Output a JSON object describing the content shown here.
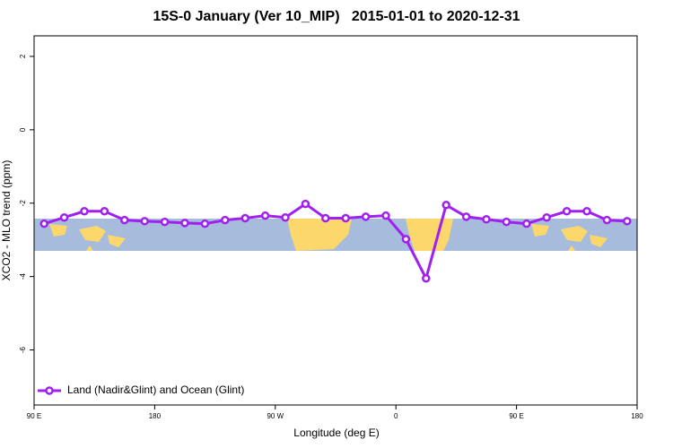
{
  "chart_data": {
    "type": "line",
    "title": "15S-0 January (Ver 10_MIP)   2015-01-01 to 2020-12-31",
    "x_label": "Longitude (deg E)",
    "y_label": "XCO2 - MLO trend (ppm)",
    "x": [
      97.5,
      112.5,
      127.5,
      142.5,
      157.5,
      172.5,
      187.5,
      202.5,
      217.5,
      232.5,
      247.5,
      262.5,
      277.5,
      292.5,
      307.5,
      322.5,
      337.5,
      352.5,
      367.5,
      382.5,
      397.5,
      412.5,
      427.5,
      442.5,
      457.5,
      472.5,
      487.5,
      502.5,
      517.5,
      532.5
    ],
    "series": [
      {
        "name": "Land (Nadir&Glint) and Ocean (Glint)",
        "color": "#a020f0",
        "values": [
          -2.56,
          -2.39,
          -2.22,
          -2.22,
          -2.46,
          -2.49,
          -2.51,
          -2.54,
          -2.56,
          -2.46,
          -2.41,
          -2.34,
          -2.39,
          -2.02,
          -2.41,
          -2.41,
          -2.37,
          -2.34,
          -2.98,
          -4.05,
          -2.05,
          -2.37,
          -2.44,
          -2.51,
          -2.56,
          -2.39,
          -2.22,
          -2.22,
          -2.46,
          -2.49
        ]
      }
    ],
    "xlim": [
      90,
      540
    ],
    "xticks": [
      {
        "value": 90,
        "label": "90 E"
      },
      180,
      {
        "value": 270,
        "label": "90 W"
      },
      {
        "value": 360,
        "label": "0"
      },
      {
        "value": 450,
        "label": "90 E"
      },
      {
        "value": 540,
        "label": "180"
      }
    ],
    "ylim": [
      -7.5,
      2.56
    ],
    "yticks": [
      -6,
      -4,
      -2,
      0,
      2
    ],
    "legend": "bottomleft"
  }
}
